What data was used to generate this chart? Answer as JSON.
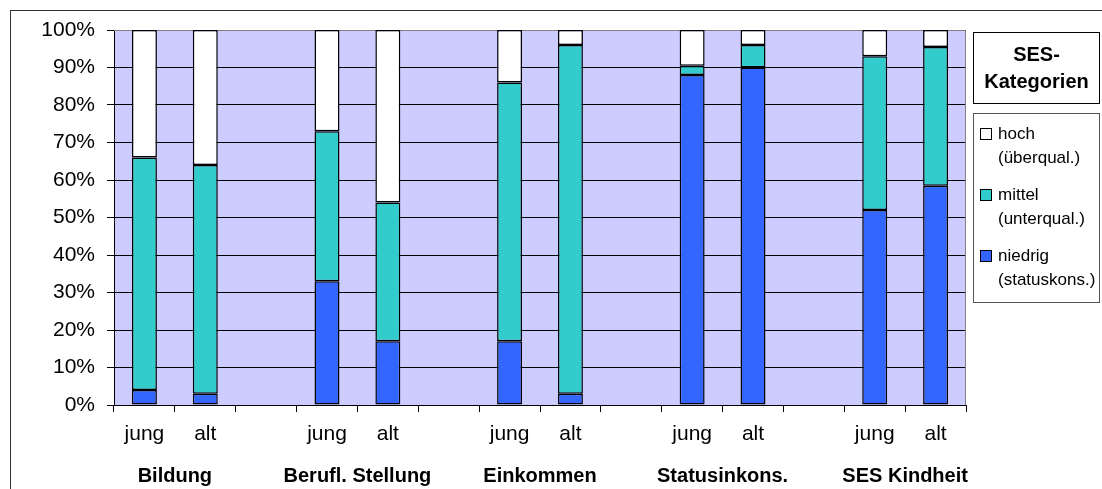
{
  "chart_data": {
    "type": "bar",
    "stacked": true,
    "categories": [
      "jung",
      "alt",
      null,
      "jung",
      "alt",
      null,
      "jung",
      "alt",
      null,
      "jung",
      "alt",
      null,
      "jung",
      "alt"
    ],
    "series": [
      {
        "name": "niedrig (statuskons.)",
        "color": "#3366ff",
        "values": [
          4,
          3,
          null,
          33,
          17,
          null,
          17,
          3,
          null,
          88,
          90,
          null,
          52,
          58.5
        ]
      },
      {
        "name": "mittel (unterqual.)",
        "color": "#33cccc",
        "values": [
          62,
          61,
          null,
          40,
          37,
          null,
          69,
          93,
          null,
          2.5,
          6,
          null,
          41,
          37
        ]
      },
      {
        "name": "hoch (überqual.)",
        "color": "#ffffff",
        "values": [
          34,
          36,
          null,
          27,
          46,
          null,
          14,
          4,
          null,
          9.5,
          4,
          null,
          7,
          4.5
        ]
      }
    ],
    "ylim": [
      0,
      100
    ],
    "yticks": [
      {
        "value": 0,
        "label": "0%"
      },
      {
        "value": 10,
        "label": "10%"
      },
      {
        "value": 20,
        "label": "20%"
      },
      {
        "value": 30,
        "label": "30%"
      },
      {
        "value": 40,
        "label": "40%"
      },
      {
        "value": 50,
        "label": "50%"
      },
      {
        "value": 60,
        "label": "60%"
      },
      {
        "value": 70,
        "label": "70%"
      },
      {
        "value": 80,
        "label": "80%"
      },
      {
        "value": 90,
        "label": "90%"
      },
      {
        "value": 100,
        "label": "100%"
      }
    ],
    "grid": "y",
    "legend": "right",
    "legend_title": "SES-Kategorien",
    "annotations": [
      "Bildung",
      "Berufl. Stellung",
      "Einkommen",
      "Statusinkons.",
      "SES Kindheit"
    ]
  }
}
